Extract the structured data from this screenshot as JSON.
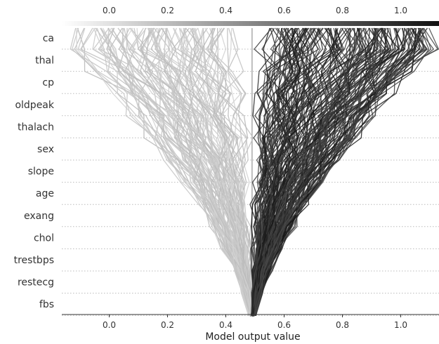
{
  "chart_data": {
    "type": "line",
    "subtype": "decision-plot",
    "title": "",
    "xlabel": "Model output value",
    "ylabel": "",
    "xlim": [
      -0.17,
      1.13
    ],
    "x_ticks": [
      0.0,
      0.2,
      0.4,
      0.6,
      0.8,
      1.0
    ],
    "x_tick_labels": [
      "0.0",
      "0.2",
      "0.4",
      "0.6",
      "0.8",
      "1.0"
    ],
    "features": [
      "ca",
      "thal",
      "cp",
      "oldpeak",
      "thalach",
      "sex",
      "slope",
      "age",
      "exang",
      "chol",
      "trestbps",
      "restecg",
      "fbs"
    ],
    "base_value": 0.49,
    "color_bar": {
      "ticks": [
        "0.0",
        "0.2",
        "0.4",
        "0.6",
        "0.8",
        "1.0"
      ],
      "low_color": "#ffffff",
      "high_color": "#111111"
    },
    "grid": "dotted horizontal per feature",
    "legend": "colorbar top",
    "colors": {
      "low_output": "#c8c8c8",
      "high_output": "#1e1e1e",
      "base_line": "#aaaaaa",
      "grid": "#bbbbbb",
      "text": "#333333"
    }
  }
}
